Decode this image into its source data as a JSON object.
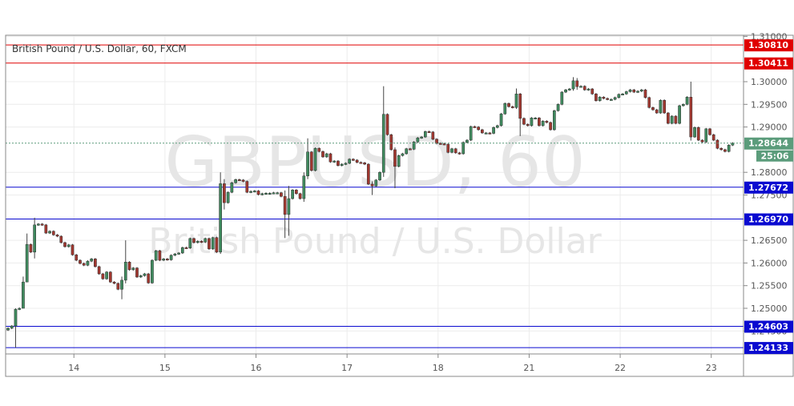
{
  "header": {
    "symbol_title": "British Pound / U.S. Dollar, 60, FXCM"
  },
  "watermark": {
    "ticker": "GBPUSD, 60",
    "name": "British Pound / U.S. Dollar"
  },
  "colors": {
    "up": "#3f8a5e",
    "down": "#a1372f",
    "resistance": "#e00000",
    "support": "#0a0ad0",
    "last_price": "#5b9c7b"
  },
  "chart_data": {
    "type": "candlestick",
    "title": "British Pound / U.S. Dollar, 60, FXCM",
    "interval_minutes": 60,
    "ylim": [
      1.2405,
      1.31
    ],
    "grid": true,
    "y_ticks": [
      "1.31000",
      "1.30000",
      "1.29500",
      "1.29000",
      "1.28000",
      "1.27500",
      "1.26500",
      "1.26000",
      "1.25500",
      "1.25000",
      "1.24500"
    ],
    "x_ticks": [
      {
        "label": "14",
        "bar": 18
      },
      {
        "label": "15",
        "bar": 42
      },
      {
        "label": "16",
        "bar": 66
      },
      {
        "label": "17",
        "bar": 90
      },
      {
        "label": "18",
        "bar": 114
      },
      {
        "label": "21",
        "bar": 138
      },
      {
        "label": "22",
        "bar": 162
      },
      {
        "label": "23",
        "bar": 186
      }
    ],
    "first_open": 1.2452,
    "close": [
      1.2456,
      1.2461,
      1.2498,
      1.25,
      1.2558,
      1.2641,
      1.2624,
      1.2684,
      1.2686,
      1.2684,
      1.2666,
      1.267,
      1.2662,
      1.2659,
      1.2645,
      1.2636,
      1.264,
      1.2618,
      1.2606,
      1.2599,
      1.2595,
      1.2604,
      1.2609,
      1.2592,
      1.2576,
      1.2565,
      1.258,
      1.2558,
      1.2555,
      1.2542,
      1.2562,
      1.2602,
      1.2585,
      1.2589,
      1.2569,
      1.2572,
      1.2576,
      1.2556,
      1.2606,
      1.2627,
      1.2606,
      1.2609,
      1.2607,
      1.2617,
      1.262,
      1.2622,
      1.2634,
      1.2633,
      1.2654,
      1.2645,
      1.2648,
      1.2646,
      1.2654,
      1.2631,
      1.2656,
      1.2624,
      1.2775,
      1.2733,
      1.2756,
      1.2777,
      1.2784,
      1.2783,
      1.278,
      1.2756,
      1.2758,
      1.2759,
      1.2751,
      1.2753,
      1.2754,
      1.2754,
      1.2755,
      1.2755,
      1.2747,
      1.2707,
      1.2742,
      1.2761,
      1.2753,
      1.2742,
      1.2792,
      1.2845,
      1.2804,
      1.2853,
      1.2846,
      1.2834,
      1.2841,
      1.2823,
      1.2825,
      1.2815,
      1.2818,
      1.282,
      1.2829,
      1.2827,
      1.2822,
      1.2821,
      1.2818,
      1.2774,
      1.277,
      1.2783,
      1.28,
      1.2928,
      1.2883,
      1.285,
      1.2813,
      1.2837,
      1.2841,
      1.2852,
      1.2851,
      1.2867,
      1.2876,
      1.2878,
      1.289,
      1.2889,
      1.2873,
      1.2864,
      1.2863,
      1.2862,
      1.2844,
      1.2852,
      1.2843,
      1.2841,
      1.2866,
      1.2871,
      1.2901,
      1.29,
      1.2894,
      1.2887,
      1.2887,
      1.2886,
      1.2899,
      1.2903,
      1.2929,
      1.2952,
      1.2945,
      1.2943,
      1.2973,
      1.2919,
      1.2906,
      1.2903,
      1.292,
      1.292,
      1.2903,
      1.2913,
      1.291,
      1.2894,
      1.2936,
      1.295,
      1.2977,
      1.2982,
      1.2984,
      1.3002,
      1.2989,
      1.299,
      1.2982,
      1.2984,
      1.2973,
      1.2958,
      1.2966,
      1.2963,
      1.2961,
      1.2961,
      1.2965,
      1.2972,
      1.2973,
      1.2978,
      1.2982,
      1.2977,
      1.2979,
      1.2982,
      1.2965,
      1.2943,
      1.2938,
      1.2931,
      1.2959,
      1.2931,
      1.2908,
      1.2924,
      1.2908,
      1.2947,
      1.295,
      1.2966,
      1.2878,
      1.2899,
      1.2871,
      1.2867,
      1.2896,
      1.2883,
      1.2871,
      1.2853,
      1.285,
      1.2846,
      1.286,
      1.28644
    ],
    "wicks": [
      {
        "bar": 2,
        "high": 1.25,
        "low": 1.2413
      },
      {
        "bar": 4,
        "high": 1.257,
        "low": 1.253
      },
      {
        "bar": 5,
        "high": 1.2665,
        "low": 1.259
      },
      {
        "bar": 7,
        "high": 1.27,
        "low": 1.261
      },
      {
        "bar": 30,
        "high": 1.257,
        "low": 1.252
      },
      {
        "bar": 31,
        "high": 1.265,
        "low": 1.2555
      },
      {
        "bar": 56,
        "high": 1.28,
        "low": 1.262
      },
      {
        "bar": 57,
        "high": 1.2785,
        "low": 1.2718
      },
      {
        "bar": 73,
        "high": 1.276,
        "low": 1.2655
      },
      {
        "bar": 74,
        "high": 1.277,
        "low": 1.266
      },
      {
        "bar": 78,
        "high": 1.28,
        "low": 1.2735
      },
      {
        "bar": 79,
        "high": 1.2875,
        "low": 1.2785
      },
      {
        "bar": 96,
        "high": 1.278,
        "low": 1.275
      },
      {
        "bar": 99,
        "high": 1.299,
        "low": 1.279
      },
      {
        "bar": 102,
        "high": 1.2855,
        "low": 1.2765
      },
      {
        "bar": 134,
        "high": 1.2985,
        "low": 1.294
      },
      {
        "bar": 135,
        "high": 1.2975,
        "low": 1.288
      },
      {
        "bar": 149,
        "high": 1.301,
        "low": 1.298
      },
      {
        "bar": 150,
        "high": 1.3008,
        "low": 1.2982
      },
      {
        "bar": 180,
        "high": 1.3,
        "low": 1.287
      }
    ],
    "horizontal_levels": [
      {
        "price": "1.30810",
        "kind": "resistance"
      },
      {
        "price": "1.30411",
        "kind": "resistance"
      },
      {
        "price": "1.27672",
        "kind": "support"
      },
      {
        "price": "1.26970",
        "kind": "support"
      },
      {
        "price": "1.24603",
        "kind": "support"
      },
      {
        "price": "1.24133",
        "kind": "support"
      }
    ],
    "last_price": "1.28644",
    "bar_countdown": "25:06"
  }
}
